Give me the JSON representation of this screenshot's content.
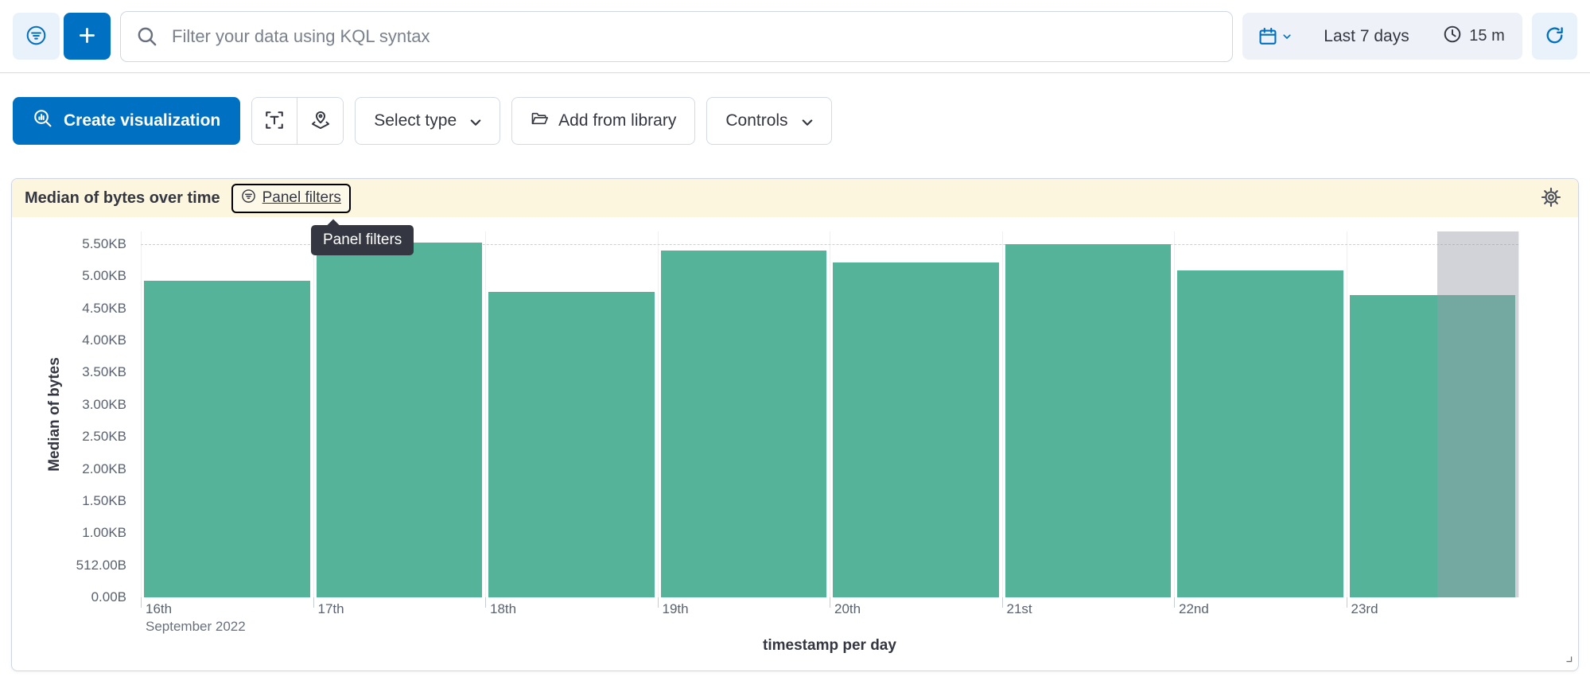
{
  "top_bar": {
    "search_placeholder": "Filter your data using KQL syntax",
    "date_range_label": "Last 7 days",
    "refresh_interval_label": "15 m"
  },
  "toolbar": {
    "create_visualization": "Create visualization",
    "select_type": "Select type",
    "add_from_library": "Add from library",
    "controls": "Controls"
  },
  "panel": {
    "title": "Median of bytes over time",
    "panel_filters": "Panel filters",
    "tooltip": "Panel filters"
  },
  "chart_data": {
    "type": "bar",
    "title": "Median of bytes over time",
    "xlabel": "timestamp per day",
    "ylabel": "Median of bytes",
    "categories": [
      "16th",
      "17th",
      "18th",
      "19th",
      "20th",
      "21st",
      "22nd",
      "23rd"
    ],
    "x_first_tick_secondary_label": "September 2022",
    "unit": "bytes",
    "values": [
      5050,
      5660,
      4870,
      5530,
      5340,
      5630,
      5210,
      4820
    ],
    "y_ticks": [
      {
        "v": 0,
        "label": "0.00B"
      },
      {
        "v": 512,
        "label": "512.00B"
      },
      {
        "v": 1024,
        "label": "1.00KB"
      },
      {
        "v": 1536,
        "label": "1.50KB"
      },
      {
        "v": 2048,
        "label": "2.00KB"
      },
      {
        "v": 2560,
        "label": "2.50KB"
      },
      {
        "v": 3072,
        "label": "3.00KB"
      },
      {
        "v": 3584,
        "label": "3.50KB"
      },
      {
        "v": 4096,
        "label": "4.00KB"
      },
      {
        "v": 4608,
        "label": "4.50KB"
      },
      {
        "v": 5120,
        "label": "5.00KB"
      },
      {
        "v": 5632,
        "label": "5.50KB"
      }
    ],
    "ylim": [
      0,
      5835
    ],
    "dashed_gridline_at": 5632,
    "bar_color": "#54b399",
    "partial_bucket_mask": {
      "slot_index": 7,
      "fraction": 0.47
    },
    "legend": "off",
    "grid": "vertical-light"
  },
  "colors": {
    "primary": "#0071c2",
    "primary_tint": "#e9f2fb",
    "bar": "#54b399",
    "panel_header_bg": "#fcf6de",
    "border": "#d3dae6",
    "text": "#343741",
    "subdued": "#69707d",
    "tooltip_bg": "#343741",
    "mask": "rgba(152,158,168,0.45)"
  }
}
